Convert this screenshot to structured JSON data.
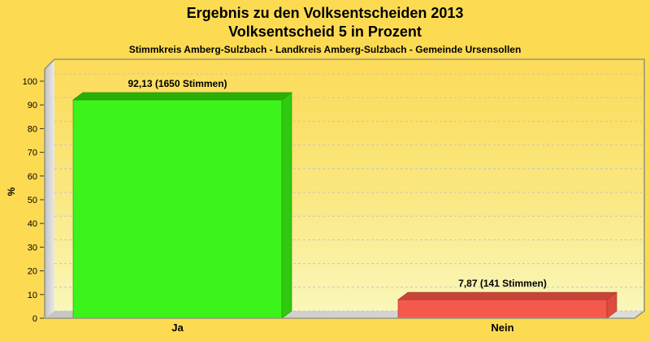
{
  "chart_data": {
    "type": "bar",
    "title": "Ergebnis zu den Volksentscheiden 2013",
    "subtitle": "Volksentscheid 5 in Prozent",
    "region_line": "Stimmkreis Amberg-Sulzbach - Landkreis Amberg-Sulzbach - Gemeinde Ursensollen",
    "ylabel": "%",
    "ylim": [
      0,
      100
    ],
    "yticks": [
      0,
      10,
      20,
      30,
      40,
      50,
      60,
      70,
      80,
      90,
      100
    ],
    "grid": "dashed horizontal",
    "legend": "none",
    "style": "3d-bars",
    "categories": [
      "Ja",
      "Nein"
    ],
    "values": [
      92.13,
      7.87
    ],
    "votes": [
      1650,
      141
    ],
    "bar_labels": [
      "92,13 (1650 Stimmen)",
      "7,87 (141 Stimmen)"
    ],
    "bar_colors": [
      {
        "front": "#3cf31b",
        "top": "#2bae06",
        "side": "#2fc90f",
        "edge": "#219b02"
      },
      {
        "front": "#f5594c",
        "top": "#c74438",
        "side": "#dc4b3f",
        "edge": "#aa3529"
      }
    ],
    "background": "#fcdb52",
    "plot_gradient": [
      "#fcdb58",
      "#fae77e",
      "#faf8be"
    ]
  }
}
